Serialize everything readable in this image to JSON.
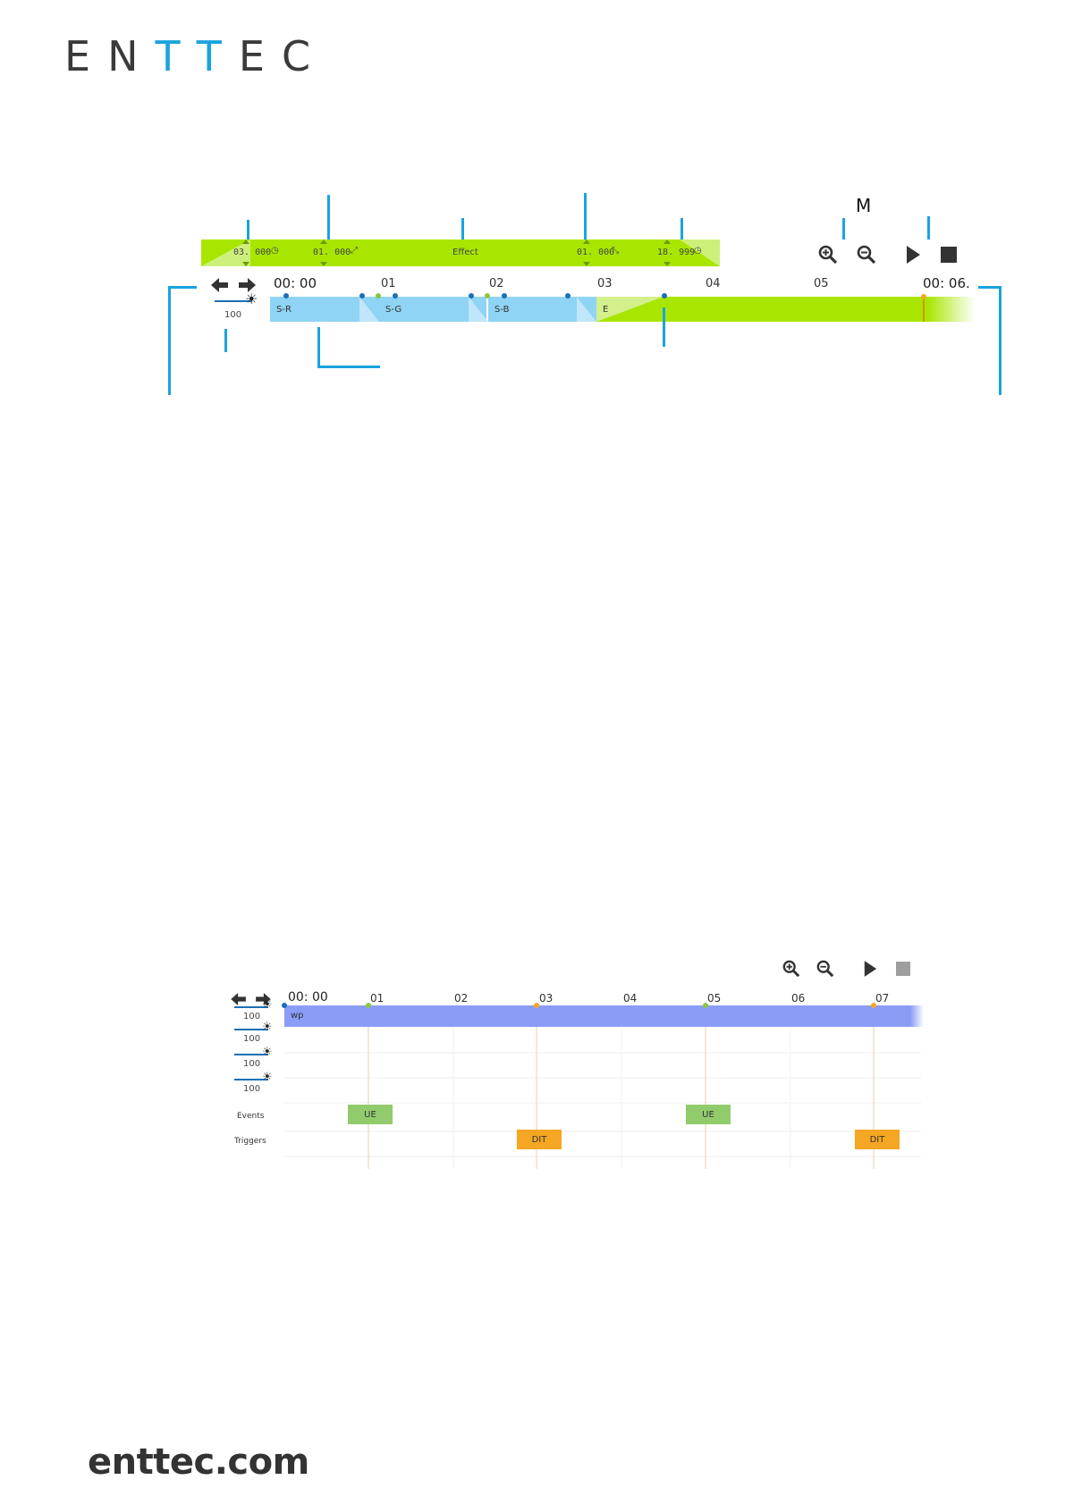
{
  "brand": {
    "logo_prefix": "EN",
    "logo_tt": "TT",
    "logo_suffix": "EC",
    "footer_url": "enttec.com"
  },
  "colors": {
    "accent": "#1aa3df",
    "effect_green": "#a8e600",
    "clip_blue": "#8fd3f5",
    "track_purple": "#8b9cf7",
    "event_green": "#92cb6b",
    "trigger_orange": "#f5a623"
  },
  "top_timeline": {
    "zoom_callout_letter": "M",
    "effect_bar": {
      "left_value": "03. 000",
      "fade_in_value": "01. 000",
      "label": "Effect",
      "fade_out_value": "01. 000",
      "right_value": "18. 999"
    },
    "start_time": "00: 00",
    "end_time": "00: 06.",
    "ticks": [
      "01",
      "02",
      "03",
      "04",
      "05"
    ],
    "intensity": "100",
    "clips": [
      "S-R",
      "S-G",
      "S-B",
      "E"
    ],
    "icons": [
      "arrow-left-icon",
      "arrow-right-icon",
      "brightness-icon",
      "zoom-in-icon",
      "zoom-out-icon",
      "play-icon",
      "stop-icon"
    ]
  },
  "bottom_timeline": {
    "start_time": "00: 00",
    "ticks": [
      "01",
      "02",
      "03",
      "04",
      "05",
      "06",
      "07"
    ],
    "intensity_values": [
      "100",
      "100",
      "100",
      "100"
    ],
    "track_clip": "wp",
    "rows": {
      "events": "Events",
      "triggers": "Triggers"
    },
    "events": [
      "UE",
      "UE"
    ],
    "triggers": [
      "DIT",
      "DIT"
    ]
  }
}
